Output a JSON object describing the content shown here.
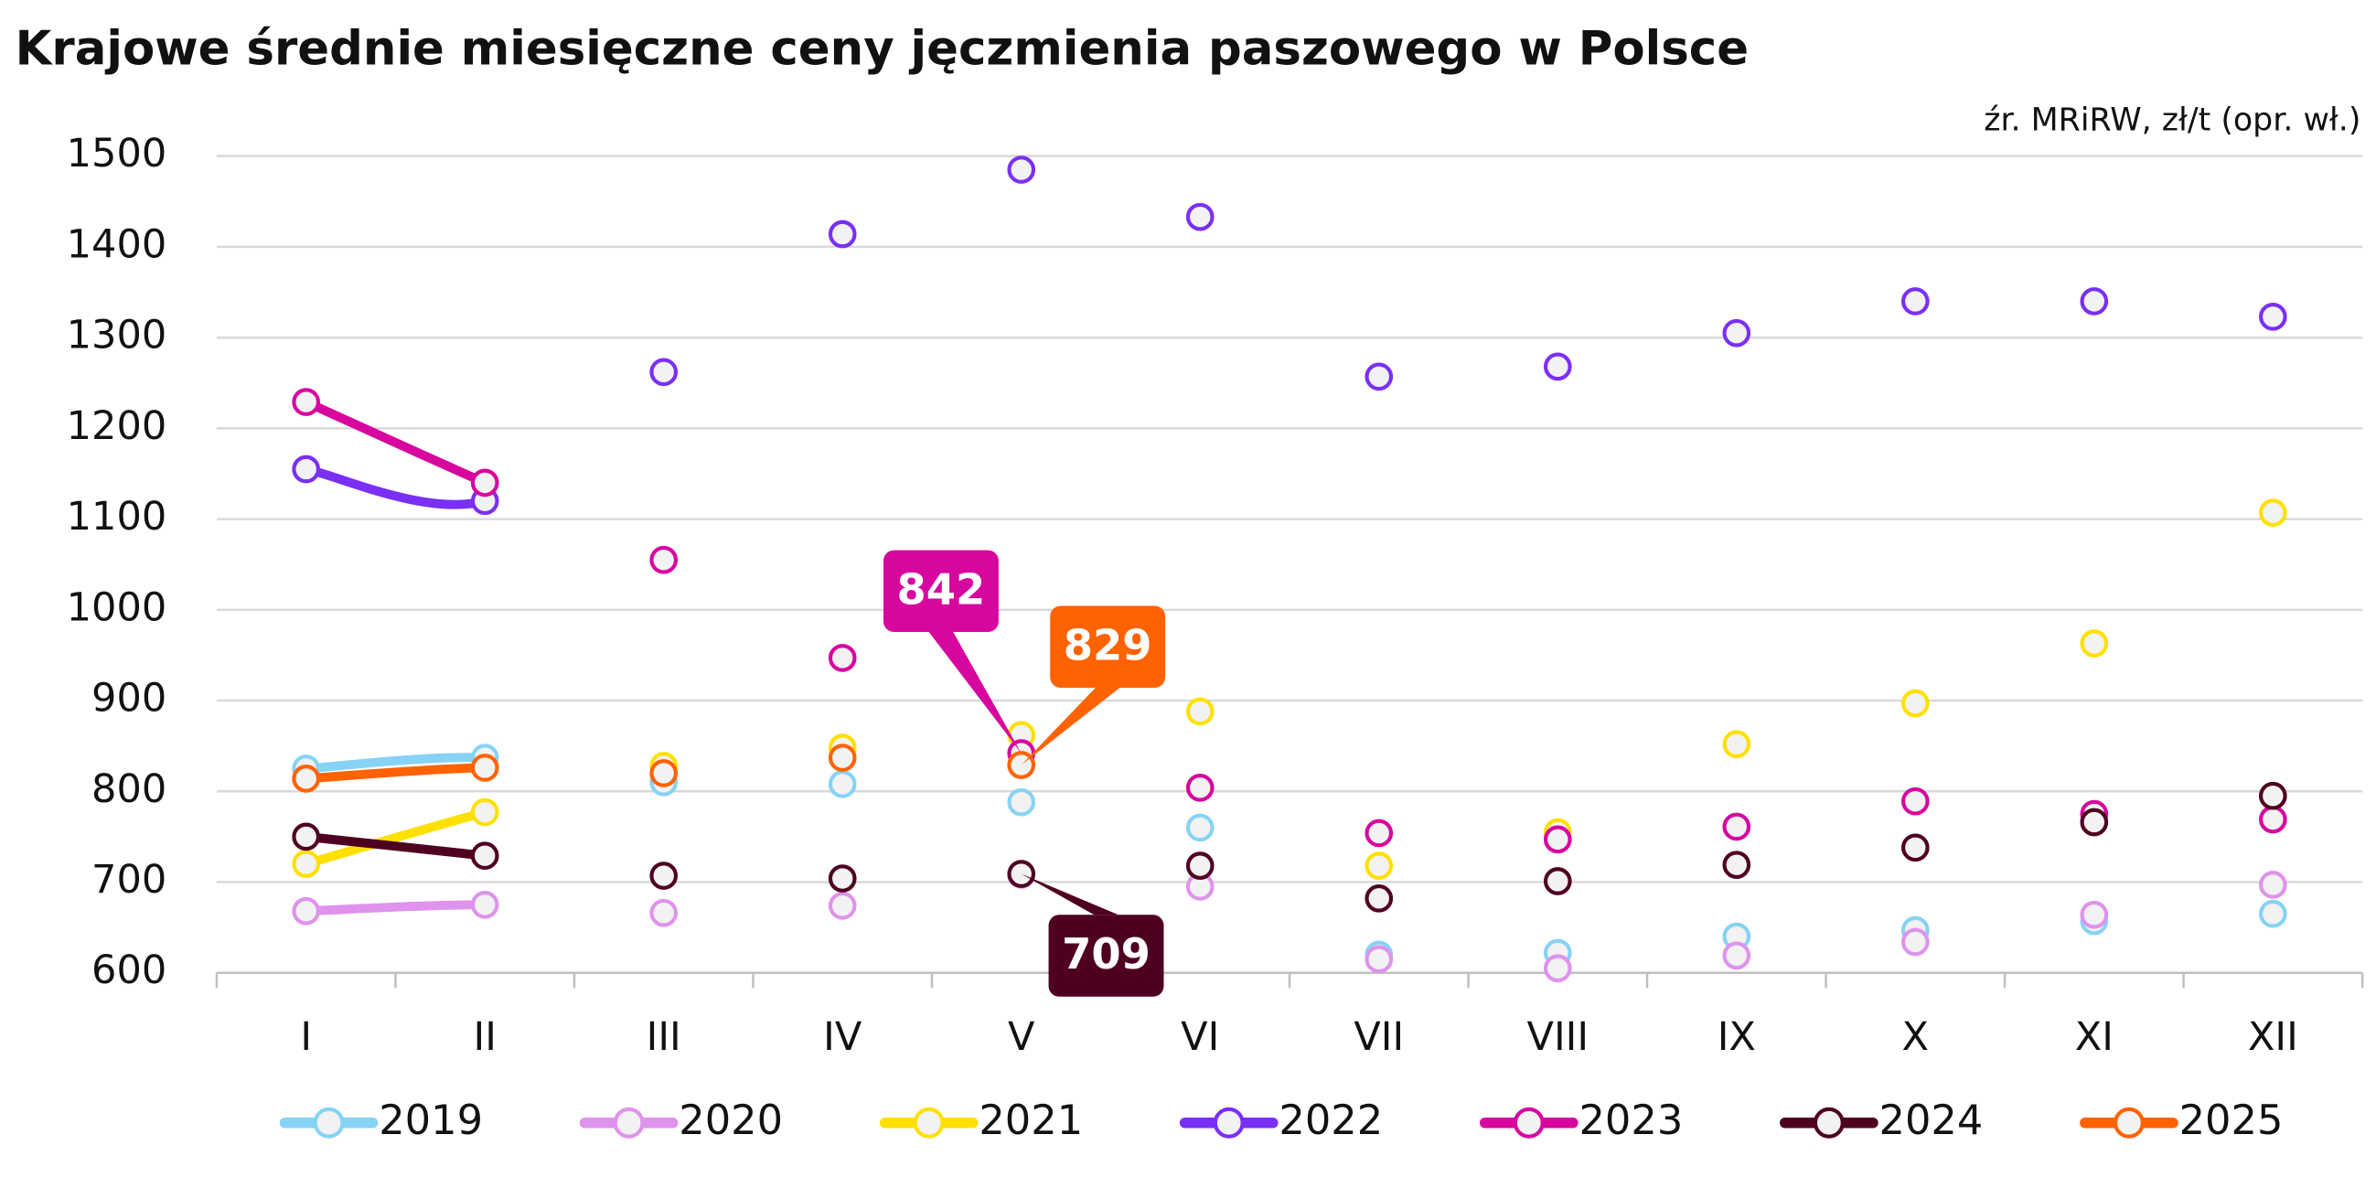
{
  "chart_data": {
    "type": "line",
    "title": "Krajowe średnie miesięczne ceny jęczmienia paszowego w Polsce",
    "source": "źr. MRiRW, zł/t (opr. wł.)",
    "categories": [
      "I",
      "II",
      "III",
      "IV",
      "V",
      "VI",
      "VII",
      "VIII",
      "IX",
      "X",
      "XI",
      "XII"
    ],
    "ylim": [
      600,
      1500
    ],
    "yticks": [
      600,
      700,
      800,
      900,
      1000,
      1100,
      1200,
      1300,
      1400,
      1500
    ],
    "grid": true,
    "series": [
      {
        "name": "2019",
        "color": "#87d3f5",
        "values": [
          825,
          837,
          810,
          808,
          788,
          760,
          620,
          622,
          640,
          647,
          657,
          665
        ]
      },
      {
        "name": "2020",
        "color": "#df93ec",
        "values": [
          668,
          675,
          666,
          674,
          708,
          695,
          615,
          605,
          619,
          634,
          664,
          697
        ]
      },
      {
        "name": "2021",
        "color": "#ffe000",
        "values": [
          720,
          777,
          828,
          848,
          862,
          888,
          718,
          755,
          852,
          897,
          963,
          1107
        ]
      },
      {
        "name": "2022",
        "color": "#7a2ff5",
        "values": [
          1155,
          1120,
          1262,
          1414,
          1485,
          1433,
          1257,
          1268,
          1305,
          1340,
          1340,
          1323
        ]
      },
      {
        "name": "2023",
        "color": "#d7069f",
        "values": [
          1229,
          1140,
          1055,
          947,
          842,
          804,
          754,
          747,
          761,
          789,
          775,
          769
        ]
      },
      {
        "name": "2024",
        "color": "#4f0021",
        "values": [
          750,
          729,
          707,
          704,
          709,
          718,
          682,
          701,
          719,
          738,
          766,
          795
        ]
      },
      {
        "name": "2025",
        "color": "#ff6200",
        "values": [
          814,
          826,
          820,
          837,
          829,
          null,
          null,
          null,
          null,
          null,
          null,
          null
        ]
      }
    ]
  }
}
